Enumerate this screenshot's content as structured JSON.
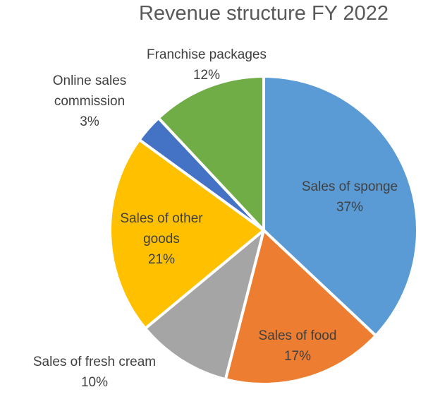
{
  "chart_data": {
    "type": "pie",
    "title": "Revenue structure FY 2022",
    "start_angle_deg": 0,
    "direction": "clockwise",
    "legend": "none",
    "slices": [
      {
        "label_lines": [
          "Sales of sponge"
        ],
        "percent_label": "37%",
        "value": 37,
        "color": "#5b9bd5"
      },
      {
        "label_lines": [
          "Sales of food"
        ],
        "percent_label": "17%",
        "value": 17,
        "color": "#ed7d31"
      },
      {
        "label_lines": [
          "Sales of fresh cream"
        ],
        "percent_label": "10%",
        "value": 10,
        "color": "#a5a5a5"
      },
      {
        "label_lines": [
          "Sales of other",
          "goods"
        ],
        "percent_label": "21%",
        "value": 21,
        "color": "#ffc000"
      },
      {
        "label_lines": [
          "Online sales",
          "commission"
        ],
        "percent_label": "3%",
        "value": 3,
        "color": "#4472c4"
      },
      {
        "label_lines": [
          "Franchise packages"
        ],
        "percent_label": "12%",
        "value": 12,
        "color": "#70ad47"
      }
    ]
  }
}
